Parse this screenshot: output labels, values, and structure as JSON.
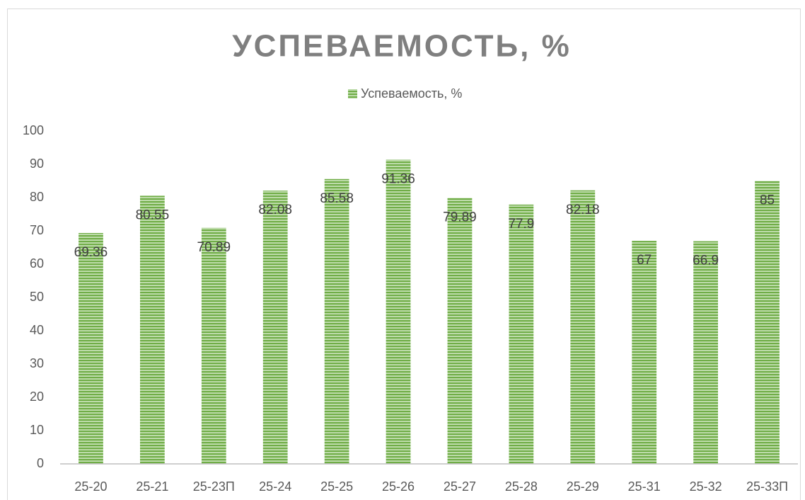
{
  "chart_data": {
    "type": "bar",
    "title": "УСПЕВАЕМОСТЬ, %",
    "categories": [
      "25-20",
      "25-21",
      "25-23П",
      "25-24",
      "25-25",
      "25-26",
      "25-27",
      "25-28",
      "25-29",
      "25-31",
      "25-32",
      "25-33П"
    ],
    "series": [
      {
        "name": "Успеваемость, %",
        "color": "#70ad47",
        "values": [
          69.36,
          80.55,
          70.89,
          82.08,
          85.58,
          91.36,
          79.89,
          77.9,
          82.18,
          67,
          66.9,
          85
        ]
      }
    ],
    "ylim": [
      0,
      100
    ],
    "yticks": [
      0,
      10,
      20,
      30,
      40,
      50,
      60,
      70,
      80,
      90,
      100
    ],
    "grid": false,
    "legend": "top",
    "data_labels": true
  }
}
